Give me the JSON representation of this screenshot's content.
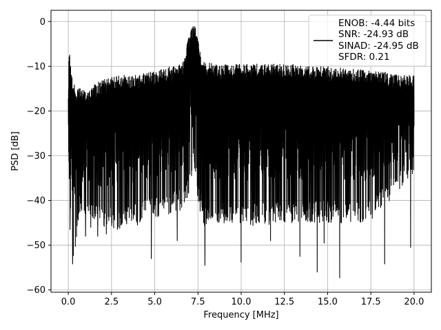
{
  "chart_data": {
    "type": "line",
    "xlabel": "Frequency [MHz]",
    "ylabel": "PSD [dB]",
    "xlim": [
      -1,
      21
    ],
    "ylim": [
      -60.5,
      2.5
    ],
    "xticks": [
      0.0,
      2.5,
      5.0,
      7.5,
      10.0,
      12.5,
      15.0,
      17.5,
      20.0
    ],
    "xtick_labels": [
      "0.0",
      "2.5",
      "5.0",
      "7.5",
      "10.0",
      "12.5",
      "15.0",
      "17.5",
      "20.0"
    ],
    "yticks": [
      0,
      -10,
      -20,
      -30,
      -40,
      -50,
      -60
    ],
    "ytick_labels": [
      "0",
      "−10",
      "−20",
      "−30",
      "−40",
      "−50",
      "−60"
    ],
    "grid": true,
    "legend_placement": "upper-right",
    "series": [
      {
        "color": "#000000",
        "x_range": [
          0,
          20
        ],
        "envelope": {
          "x": [
            0.0,
            0.05,
            0.15,
            0.3,
            0.6,
            1.0,
            2.0,
            3.0,
            4.0,
            5.0,
            6.0,
            6.6,
            6.9,
            7.1,
            7.3,
            7.5,
            7.8,
            8.5,
            10.0,
            12.5,
            15.0,
            17.5,
            20.0
          ],
          "upper": [
            -15.0,
            -5.0,
            -10.0,
            -14.0,
            -15.0,
            -15.0,
            -13.0,
            -12.0,
            -12.0,
            -11.0,
            -10.0,
            -9.5,
            -4.5,
            -1.5,
            0.0,
            -4.0,
            -9.0,
            -9.5,
            -9.5,
            -9.5,
            -10.0,
            -11.0,
            -12.0
          ],
          "lower": [
            -29.0,
            -36.0,
            -46.0,
            -54.0,
            -44.0,
            -44.0,
            -46.0,
            -47.0,
            -45.0,
            -44.0,
            -43.0,
            -42.0,
            -40.0,
            -35.0,
            -33.0,
            -40.0,
            -46.0,
            -45.0,
            -46.0,
            -45.0,
            -45.0,
            -45.0,
            -34.0
          ]
        },
        "notable_dips": [
          {
            "x": 0.1,
            "y": -46.5
          },
          {
            "x": 0.25,
            "y": -54.2
          },
          {
            "x": 1.0,
            "y": -48.0
          },
          {
            "x": 1.3,
            "y": -46.0
          },
          {
            "x": 1.7,
            "y": -48.0
          },
          {
            "x": 2.2,
            "y": -47.5
          },
          {
            "x": 4.0,
            "y": -45.5
          },
          {
            "x": 4.8,
            "y": -53.0
          },
          {
            "x": 6.3,
            "y": -49.0
          },
          {
            "x": 7.9,
            "y": -54.5
          },
          {
            "x": 8.8,
            "y": -44.0
          },
          {
            "x": 10.0,
            "y": -53.8
          },
          {
            "x": 11.7,
            "y": -49.0
          },
          {
            "x": 13.4,
            "y": -52.5
          },
          {
            "x": 14.4,
            "y": -56.0
          },
          {
            "x": 14.8,
            "y": -49.5
          },
          {
            "x": 15.7,
            "y": -57.3
          },
          {
            "x": 18.3,
            "y": -54.2
          },
          {
            "x": 19.8,
            "y": -50.5
          }
        ]
      }
    ]
  },
  "legend": {
    "lines": [
      "ENOB: -4.44 bits",
      "SNR: -24.93 dB",
      "SINAD: -24.95 dB",
      "SFDR: 0.21"
    ]
  }
}
